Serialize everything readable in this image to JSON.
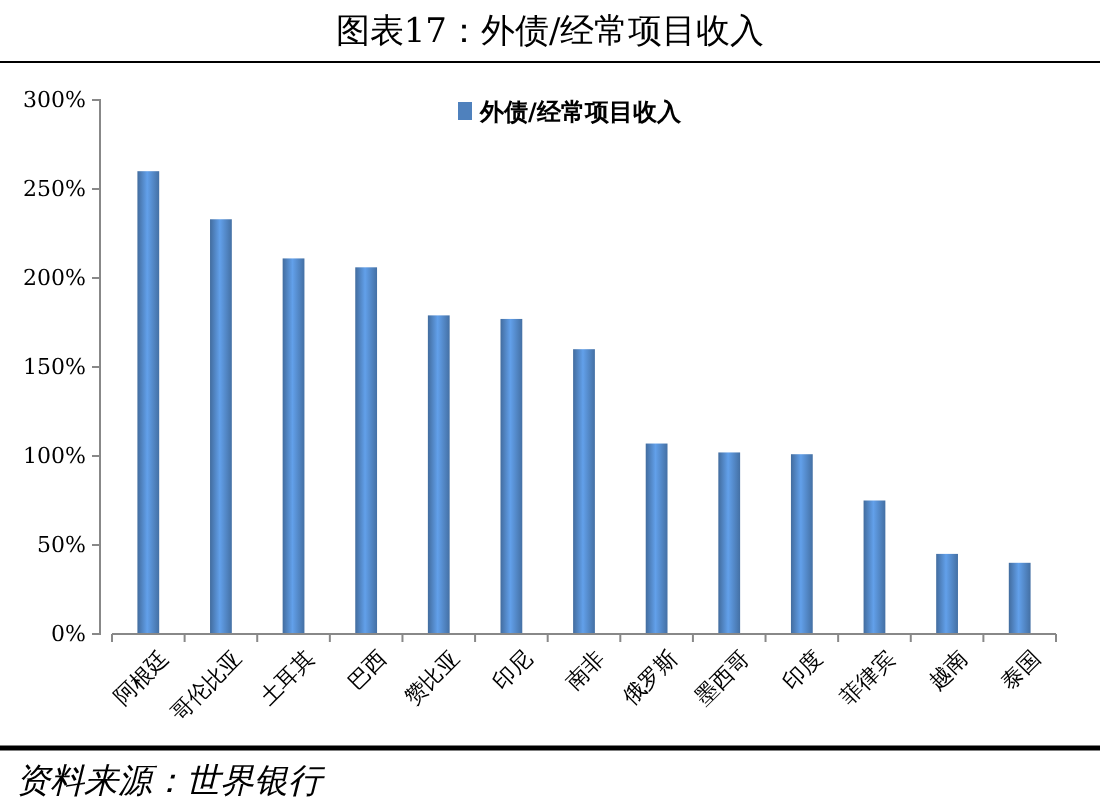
{
  "chart_data": {
    "type": "bar",
    "title": "图表17：外债/经常项目收入",
    "categories": [
      "阿根廷",
      "哥伦比亚",
      "土耳其",
      "巴西",
      "赞比亚",
      "印尼",
      "南非",
      "俄罗斯",
      "墨西哥",
      "印度",
      "菲律宾",
      "越南",
      "泰国"
    ],
    "series": [
      {
        "name": "外债/经常项目收入",
        "color": "#4f81bd",
        "values": [
          260,
          233,
          211,
          206,
          179,
          177,
          160,
          107,
          102,
          101,
          75,
          45,
          40
        ]
      }
    ],
    "ylim": [
      0,
      300
    ],
    "yticks": [
      {
        "value": 0,
        "label": "0%"
      },
      {
        "value": 50,
        "label": "50%"
      },
      {
        "value": 100,
        "label": "100%"
      },
      {
        "value": 150,
        "label": "150%"
      },
      {
        "value": 200,
        "label": "200%"
      },
      {
        "value": 250,
        "label": "250%"
      },
      {
        "value": 300,
        "label": "300%"
      }
    ],
    "grid": false,
    "legend": "top",
    "annotations": [
      "资料来源：世界银行"
    ]
  }
}
